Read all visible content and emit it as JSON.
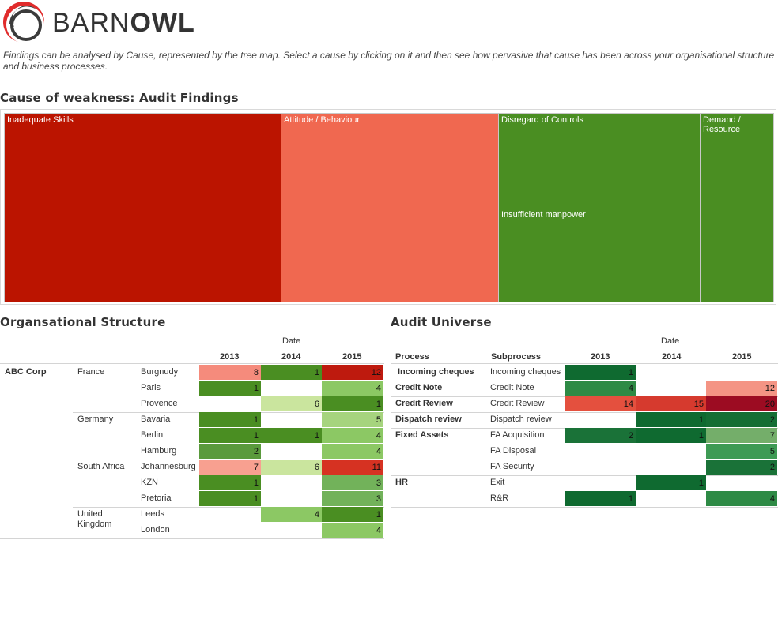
{
  "brand": {
    "prefix": "BARN",
    "suffix": "OWL"
  },
  "intro": "Findings can be analysed by Cause, represented by the tree map. Select a cause by clicking on it and then see how pervasive that cause has been across your organisational structure and business processes.",
  "treemap": {
    "title": "Cause of weakness: Audit Findings",
    "tiles": [
      {
        "label": "Inadequate Skills",
        "color": "#bb1400"
      },
      {
        "label": "Attitude / Behaviour",
        "color": "#f06850"
      },
      {
        "label": "Disregard of Controls",
        "color": "#4a8e22"
      },
      {
        "label": "Insufficient manpower",
        "color": "#4a8e22"
      },
      {
        "label": "Demand / Resource",
        "color": "#4a8e22"
      }
    ]
  },
  "org": {
    "title": "Organsational Structure",
    "date_label": "Date",
    "years": [
      "2013",
      "2014",
      "2015"
    ],
    "company": "ABC Corp",
    "countries": [
      {
        "name": "France",
        "rows": [
          {
            "city": "Burgnudy",
            "cells": [
              {
                "v": "8",
                "c": "#f58b7c"
              },
              {
                "v": "1",
                "c": "#4a8e22"
              },
              {
                "v": "12",
                "c": "#be1a0e"
              }
            ]
          },
          {
            "city": "Paris",
            "cells": [
              {
                "v": "1",
                "c": "#4a8e22"
              },
              null,
              {
                "v": "4",
                "c": "#8cc864"
              }
            ]
          },
          {
            "city": "Provence",
            "cells": [
              null,
              {
                "v": "6",
                "c": "#cae59e"
              },
              {
                "v": "1",
                "c": "#4a8e22"
              }
            ]
          }
        ]
      },
      {
        "name": "Germany",
        "rows": [
          {
            "city": "Bavaria",
            "cells": [
              {
                "v": "1",
                "c": "#4a8e22"
              },
              null,
              {
                "v": "5",
                "c": "#a6d47e"
              }
            ]
          },
          {
            "city": "Berlin",
            "cells": [
              {
                "v": "1",
                "c": "#4a8e22"
              },
              {
                "v": "1",
                "c": "#4a8e22"
              },
              {
                "v": "4",
                "c": "#8cc864"
              }
            ]
          },
          {
            "city": "Hamburg",
            "cells": [
              {
                "v": "2",
                "c": "#5a9a3c"
              },
              null,
              {
                "v": "4",
                "c": "#8cc864"
              }
            ]
          }
        ]
      },
      {
        "name": "South Africa",
        "rows": [
          {
            "city": "Johannesburg",
            "cells": [
              {
                "v": "7",
                "c": "#f8a090"
              },
              {
                "v": "6",
                "c": "#cae59e"
              },
              {
                "v": "11",
                "c": "#d63222"
              }
            ]
          },
          {
            "city": "KZN",
            "cells": [
              {
                "v": "1",
                "c": "#4a8e22"
              },
              null,
              {
                "v": "3",
                "c": "#72b25a"
              }
            ]
          },
          {
            "city": "Pretoria",
            "cells": [
              {
                "v": "1",
                "c": "#4a8e22"
              },
              null,
              {
                "v": "3",
                "c": "#72b25a"
              }
            ]
          }
        ]
      },
      {
        "name": "United Kingdom",
        "rows": [
          {
            "city": "Leeds",
            "cells": [
              null,
              {
                "v": "4",
                "c": "#8cc864"
              },
              {
                "v": "1",
                "c": "#4a8e22"
              }
            ]
          },
          {
            "city": "London",
            "cells": [
              null,
              null,
              {
                "v": "4",
                "c": "#8cc864"
              }
            ]
          }
        ]
      }
    ]
  },
  "audit": {
    "title": "Audit Universe",
    "date_label": "Date",
    "col_process": "Process",
    "col_subprocess": "Subprocess",
    "years": [
      "2013",
      "2014",
      "2015"
    ],
    "groups": [
      {
        "process": "Incoming cheques",
        "rows": [
          {
            "sub": "Incoming cheques",
            "cells": [
              {
                "v": "1",
                "c": "#0f6a30"
              },
              null,
              null
            ]
          }
        ]
      },
      {
        "process": "Credit Note",
        "rows": [
          {
            "sub": "Credit Note",
            "cells": [
              {
                "v": "4",
                "c": "#2e8a45"
              },
              null,
              {
                "v": "12",
                "c": "#f49484"
              }
            ]
          }
        ]
      },
      {
        "process": "Credit Review",
        "rows": [
          {
            "sub": "Credit Review",
            "cells": [
              {
                "v": "14",
                "c": "#e4503e"
              },
              {
                "v": "15",
                "c": "#d63a2e"
              },
              {
                "v": "20",
                "c": "#9c0c22"
              }
            ]
          }
        ]
      },
      {
        "process": "Dispatch review",
        "rows": [
          {
            "sub": "Dispatch review",
            "cells": [
              null,
              {
                "v": "1",
                "c": "#0f6a30"
              },
              {
                "v": "2",
                "c": "#156e34"
              }
            ]
          }
        ]
      },
      {
        "process": "Fixed Assets",
        "rows": [
          {
            "sub": "FA Acquisition",
            "cells": [
              {
                "v": "2",
                "c": "#1a7238"
              },
              {
                "v": "1",
                "c": "#0f6a30"
              },
              {
                "v": "7",
                "c": "#74ae6a"
              }
            ]
          },
          {
            "sub": "FA Disposal",
            "cells": [
              null,
              null,
              {
                "v": "5",
                "c": "#3e9a54"
              }
            ]
          },
          {
            "sub": "FA Security",
            "cells": [
              null,
              null,
              {
                "v": "2",
                "c": "#1a7238"
              }
            ]
          }
        ]
      },
      {
        "process": "HR",
        "rows": [
          {
            "sub": "Exit",
            "cells": [
              null,
              {
                "v": "1",
                "c": "#0f6a30"
              },
              null
            ]
          },
          {
            "sub": "R&R",
            "cells": [
              {
                "v": "1",
                "c": "#0f6a30"
              },
              null,
              {
                "v": "4",
                "c": "#2e8a45"
              }
            ]
          }
        ]
      }
    ]
  }
}
